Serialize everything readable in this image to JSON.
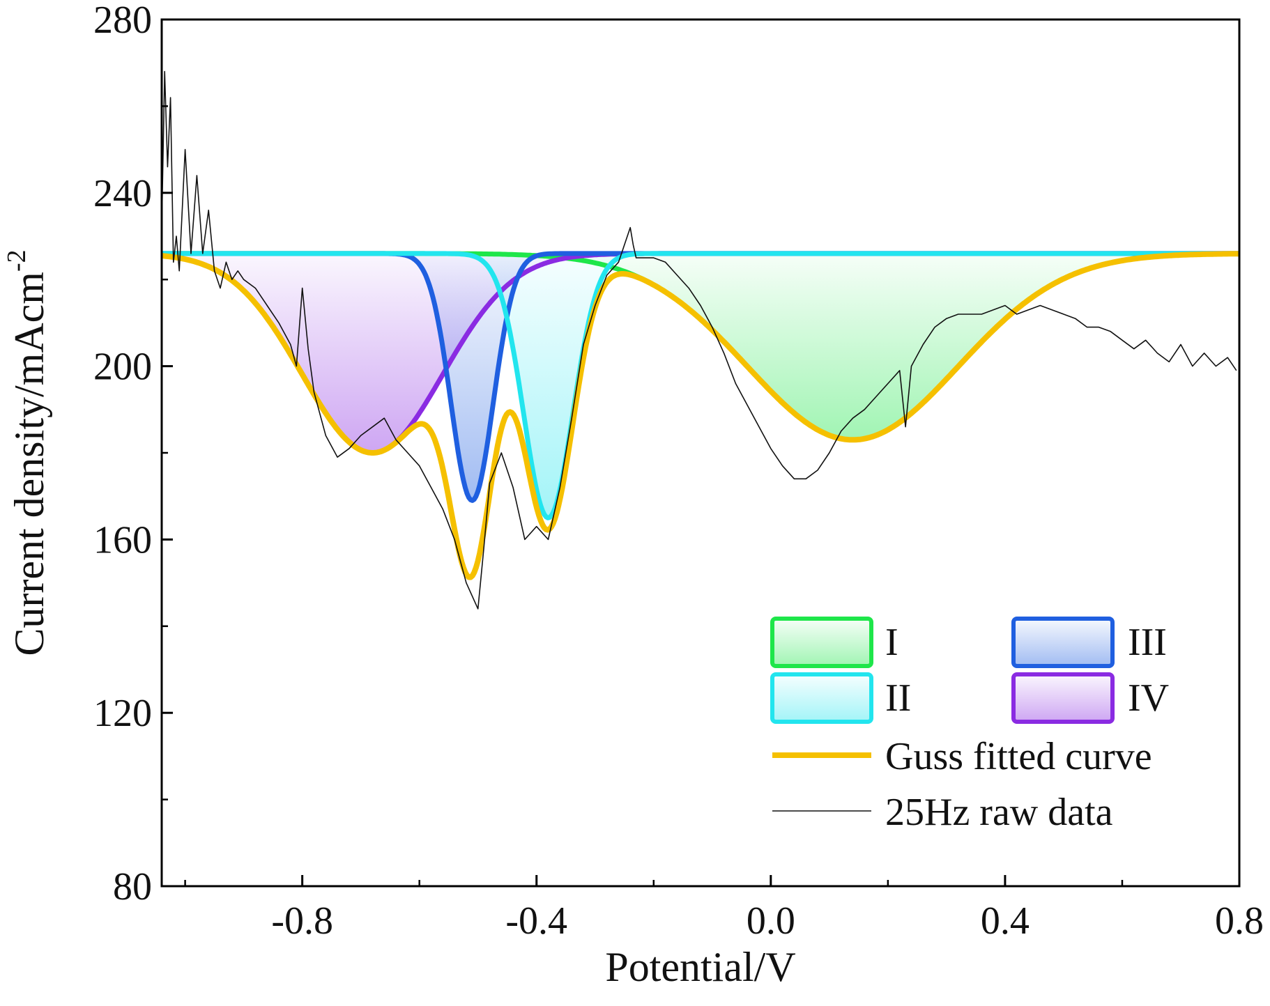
{
  "chart_data": {
    "type": "line",
    "title": "",
    "xlabel": "Potential/V",
    "ylabel_main": "Current density/mAcm",
    "ylabel_sup": "-2",
    "xlim": [
      -1.04,
      0.8
    ],
    "ylim": [
      80,
      280
    ],
    "xticks": [
      -0.8,
      -0.4,
      0.0,
      0.4,
      0.8
    ],
    "xtick_labels": [
      "-0.8",
      "-0.4",
      "0.0",
      "0.4",
      "0.8"
    ],
    "yticks": [
      80,
      120,
      160,
      200,
      240,
      280
    ],
    "ytick_labels": [
      "80",
      "120",
      "160",
      "200",
      "240",
      "280"
    ],
    "baseline": 226,
    "peaks": [
      {
        "name": "I",
        "center": 0.14,
        "depth": 43,
        "sigma": 0.18,
        "color": "#1ee64a"
      },
      {
        "name": "II",
        "center": -0.38,
        "depth": 61,
        "sigma": 0.042,
        "color": "#22e5ee"
      },
      {
        "name": "III",
        "center": -0.51,
        "depth": 57,
        "sigma": 0.036,
        "color": "#1f5fe0"
      },
      {
        "name": "IV",
        "center": -0.68,
        "depth": 46,
        "sigma": 0.12,
        "color": "#8a2be2"
      }
    ],
    "fit_color": "#f5c000",
    "raw_color": "#111111",
    "raw_data": {
      "x": [
        -1.04,
        -1.035,
        -1.03,
        -1.025,
        -1.02,
        -1.015,
        -1.01,
        -1.0,
        -0.99,
        -0.98,
        -0.97,
        -0.96,
        -0.95,
        -0.94,
        -0.93,
        -0.92,
        -0.91,
        -0.9,
        -0.88,
        -0.86,
        -0.84,
        -0.82,
        -0.81,
        -0.8,
        -0.79,
        -0.78,
        -0.76,
        -0.74,
        -0.72,
        -0.7,
        -0.68,
        -0.66,
        -0.64,
        -0.62,
        -0.6,
        -0.58,
        -0.56,
        -0.54,
        -0.52,
        -0.5,
        -0.49,
        -0.48,
        -0.46,
        -0.44,
        -0.42,
        -0.4,
        -0.38,
        -0.36,
        -0.34,
        -0.32,
        -0.3,
        -0.28,
        -0.26,
        -0.24,
        -0.235,
        -0.23,
        -0.22,
        -0.2,
        -0.18,
        -0.16,
        -0.14,
        -0.12,
        -0.1,
        -0.08,
        -0.06,
        -0.04,
        -0.02,
        0.0,
        0.02,
        0.04,
        0.06,
        0.08,
        0.1,
        0.12,
        0.14,
        0.16,
        0.18,
        0.2,
        0.22,
        0.23,
        0.24,
        0.26,
        0.28,
        0.3,
        0.32,
        0.34,
        0.36,
        0.38,
        0.4,
        0.42,
        0.44,
        0.46,
        0.48,
        0.5,
        0.52,
        0.54,
        0.56,
        0.58,
        0.6,
        0.62,
        0.64,
        0.66,
        0.68,
        0.7,
        0.72,
        0.74,
        0.76,
        0.78,
        0.795
      ],
      "y": [
        232,
        268,
        246,
        262,
        224,
        230,
        222,
        250,
        226,
        244,
        226,
        236,
        222,
        218,
        224,
        220,
        222,
        220,
        218,
        214,
        210,
        205,
        200,
        218,
        204,
        194,
        184,
        179,
        181,
        184,
        186,
        188,
        183,
        180,
        177,
        172,
        167,
        160,
        150,
        144,
        158,
        173,
        180,
        172,
        160,
        163,
        160,
        172,
        188,
        205,
        214,
        221,
        224,
        232,
        228,
        225,
        225,
        225,
        224,
        221,
        218,
        214,
        209,
        203,
        196,
        191,
        186,
        181,
        177,
        174,
        174,
        176,
        180,
        185,
        188,
        190,
        193,
        196,
        199,
        186,
        200,
        205,
        209,
        211,
        212,
        212,
        212,
        213,
        214,
        212,
        213,
        214,
        213,
        212,
        211,
        209,
        209,
        208,
        206,
        204,
        206,
        203,
        201,
        205,
        200,
        203,
        200,
        202,
        199
      ]
    }
  }
}
